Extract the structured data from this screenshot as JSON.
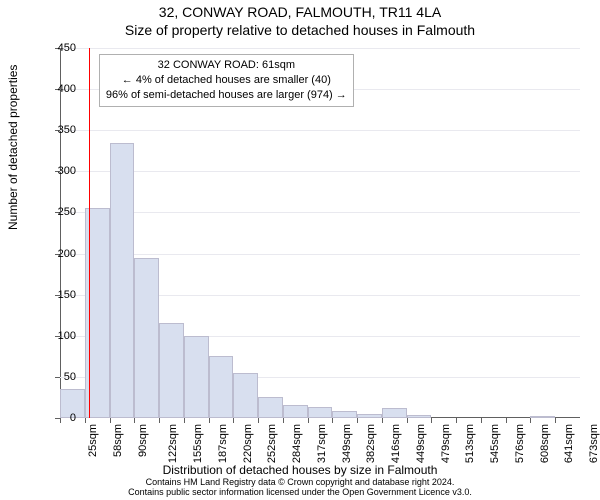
{
  "title1": "32, CONWAY ROAD, FALMOUTH, TR11 4LA",
  "title2": "Size of property relative to detached houses in Falmouth",
  "ylabel": "Number of detached properties",
  "xlabel": "Distribution of detached houses by size in Falmouth",
  "footer1": "Contains HM Land Registry data © Crown copyright and database right 2024.",
  "footer2": "Contains public sector information licensed under the Open Government Licence v3.0.",
  "chart": {
    "type": "histogram",
    "ymin": 0,
    "ymax": 450,
    "ytick_step": 50,
    "xtick_labels": [
      "25sqm",
      "58sqm",
      "90sqm",
      "122sqm",
      "155sqm",
      "187sqm",
      "220sqm",
      "252sqm",
      "284sqm",
      "317sqm",
      "349sqm",
      "382sqm",
      "416sqm",
      "449sqm",
      "479sqm",
      "513sqm",
      "545sqm",
      "576sqm",
      "608sqm",
      "641sqm",
      "673sqm"
    ],
    "bars": [
      35,
      255,
      335,
      195,
      115,
      100,
      75,
      55,
      25,
      16,
      14,
      8,
      5,
      12,
      4,
      0,
      0,
      0,
      0,
      3,
      0
    ],
    "bar_fill": "#d8dfef",
    "bar_border": "#bcbccf",
    "background": "#ffffff",
    "grid_color": "#e9e9ef",
    "axis_color": "#606060",
    "ref_line_value": 61,
    "ref_line_color": "#ff0000",
    "xrange_min": 25,
    "xrange_max": 673,
    "title_fontsize": 14,
    "label_fontsize": 12,
    "tick_fontsize": 11
  },
  "annotation": {
    "line1": "32 CONWAY ROAD: 61sqm",
    "line2": "← 4% of detached houses are smaller (40)",
    "line3": "96% of semi-detached houses are larger (974) →"
  }
}
